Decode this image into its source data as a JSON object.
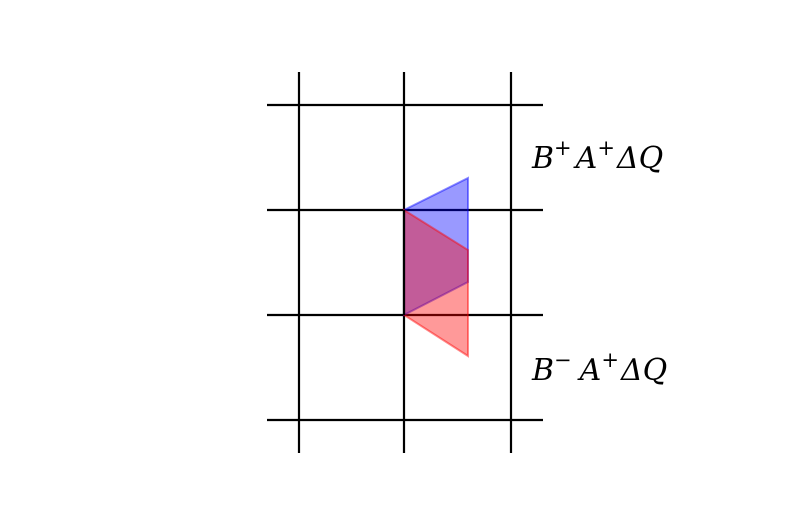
{
  "labels": {
    "upper": {
      "B": "B",
      "B_sup": "+",
      "A": "A",
      "A_sup": "+",
      "tail": "ΔQ"
    },
    "lower": {
      "B": "B",
      "B_sup": "−",
      "A": "A",
      "A_sup": "+",
      "tail": "ΔQ"
    }
  },
  "colors": {
    "grid": "#000000",
    "upper_wave": "#0000ff",
    "lower_wave": "#ff0000"
  }
}
